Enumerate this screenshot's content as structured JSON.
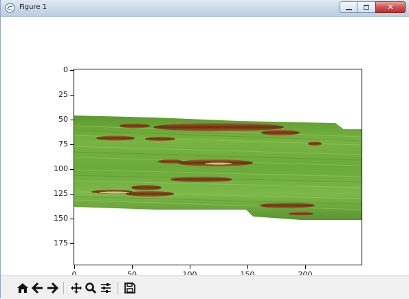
{
  "window": {
    "title": "Figure 1",
    "minimize_icon": "minimize-icon",
    "maximize_icon": "maximize-icon",
    "close_icon": "close-icon"
  },
  "axes": {
    "yticks": [
      "0",
      "25",
      "50",
      "75",
      "100",
      "125",
      "150",
      "175"
    ],
    "xticks": [
      "0",
      "50",
      "100",
      "150",
      "200"
    ]
  },
  "image": {
    "subject": "leaf-image",
    "leaf_color": "#6aa93a",
    "lesion_color": "#7a3b1e"
  },
  "toolbar": {
    "buttons": [
      {
        "name": "home",
        "icon": "home-icon"
      },
      {
        "name": "back",
        "icon": "back-arrow-icon"
      },
      {
        "name": "forward",
        "icon": "forward-arrow-icon"
      },
      {
        "name": "pan",
        "icon": "pan-icon"
      },
      {
        "name": "zoom",
        "icon": "zoom-icon"
      },
      {
        "name": "configure",
        "icon": "configure-subplots-icon"
      },
      {
        "name": "save",
        "icon": "save-icon"
      }
    ]
  }
}
